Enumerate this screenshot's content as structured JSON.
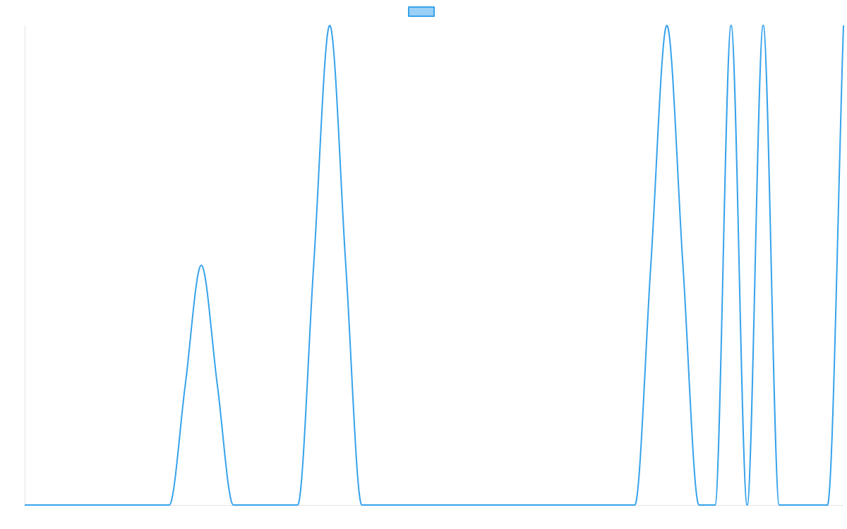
{
  "chart_data": {
    "type": "line",
    "title": "",
    "xlabel": "",
    "ylabel": "",
    "grid": false,
    "legend_position": "top",
    "x": [
      0,
      4.5,
      5,
      5.5,
      6,
      6.5,
      7,
      8.5,
      9,
      9.5,
      10,
      10.5,
      11,
      19,
      19.5,
      20,
      20.5,
      21,
      21.5,
      22,
      22.5,
      23,
      23.5,
      24,
      25,
      25.5
    ],
    "series": [
      {
        "name": "",
        "values": [
          0,
          0,
          0.5,
          1,
          0.5,
          0,
          0,
          0,
          1,
          2,
          1,
          0,
          0,
          0,
          1,
          2,
          1,
          0,
          0,
          2,
          0,
          2,
          0,
          0,
          0,
          2
        ]
      }
    ],
    "xlim": [
      0,
      25.5
    ],
    "ylim": [
      0,
      2
    ],
    "colors": {
      "line": "#36a2eb",
      "legend_fill": "#9ad0f5",
      "axis": "#e5e5e5"
    }
  }
}
